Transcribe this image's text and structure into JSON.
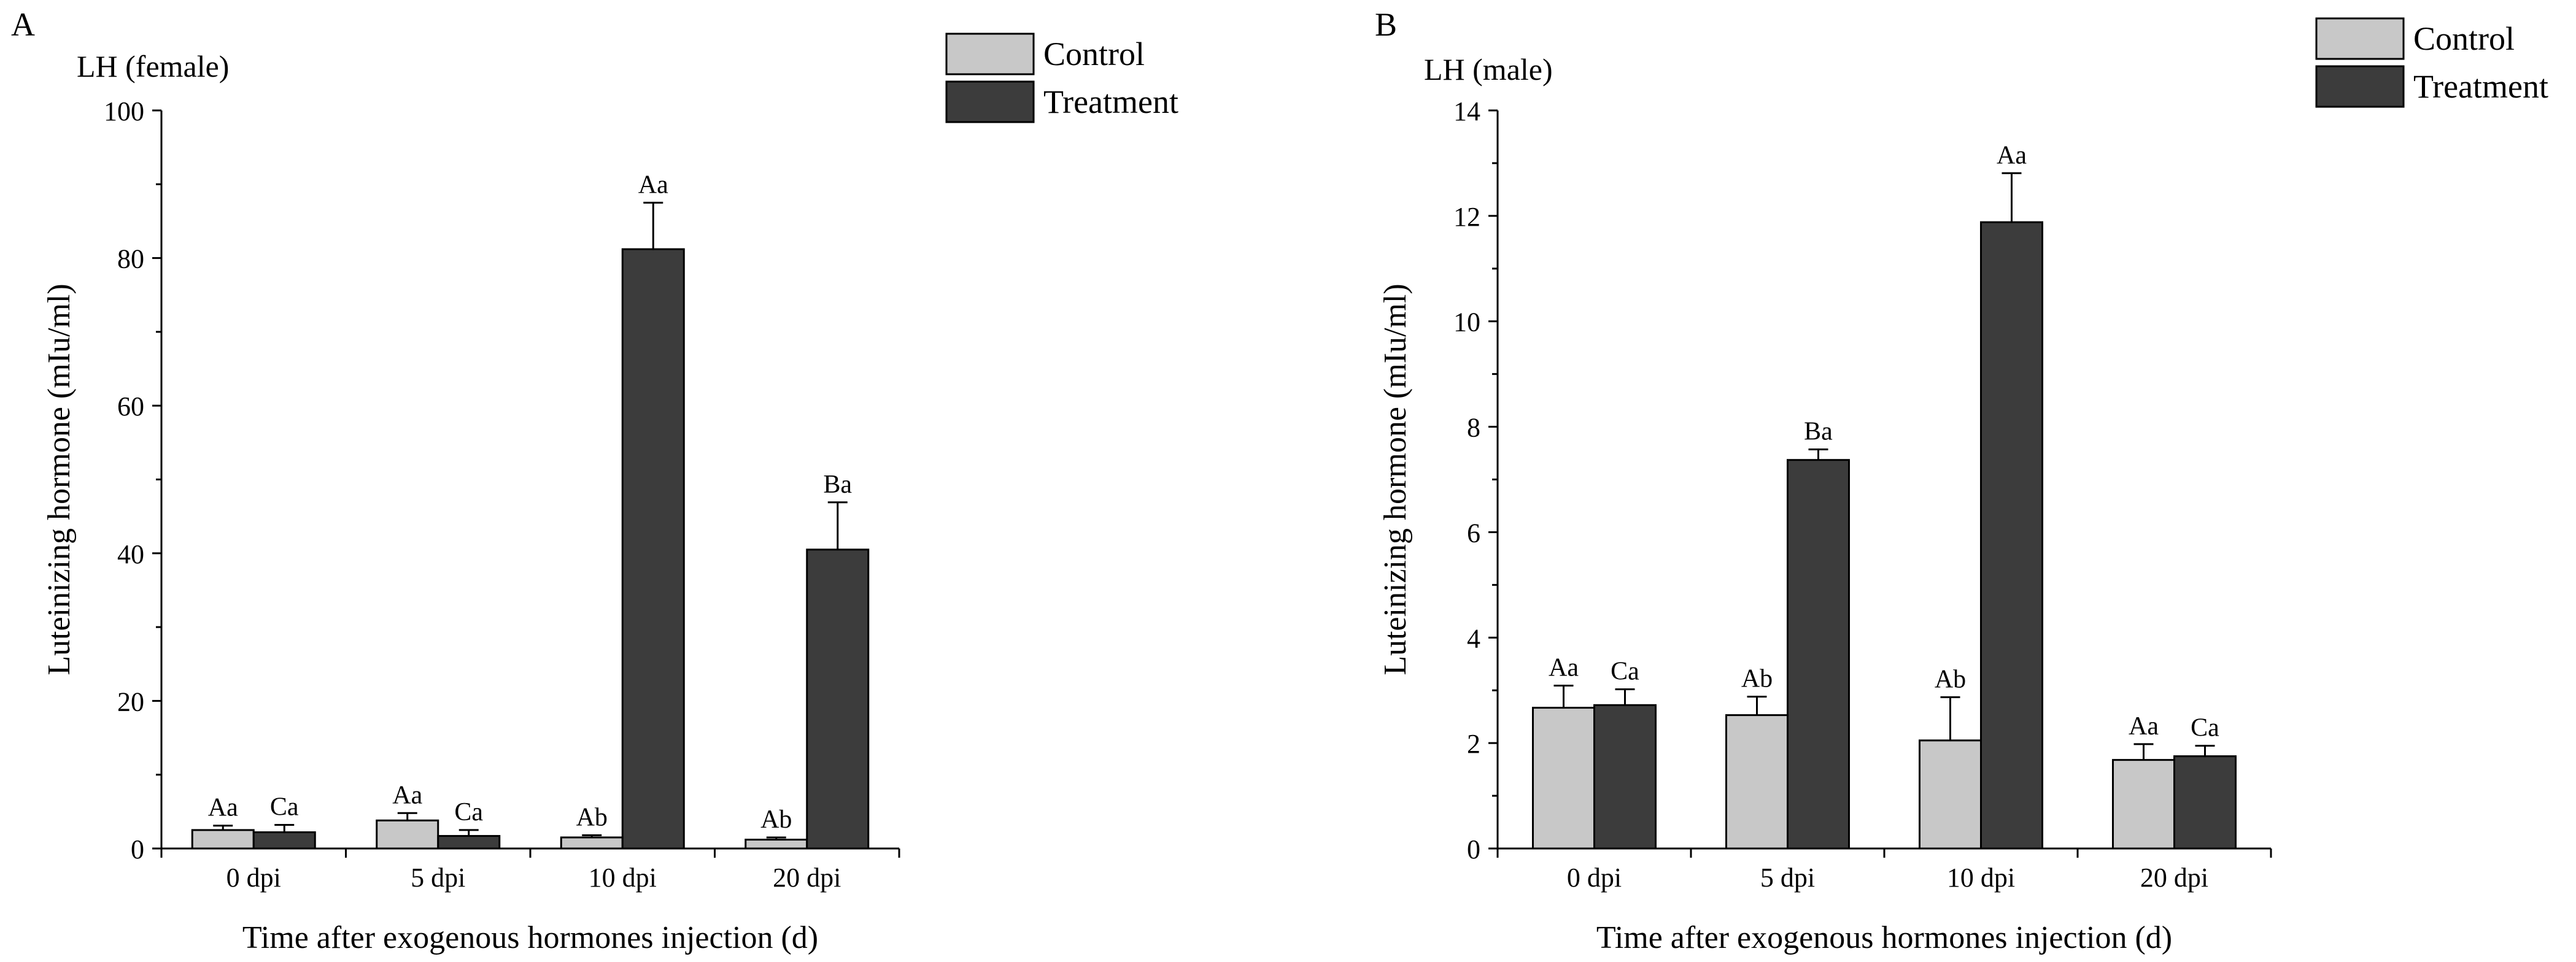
{
  "colors": {
    "control": "#c8c8c8",
    "treatment": "#3c3c3c",
    "axis": "#000000"
  },
  "chart_data": [
    {
      "panel_label": "A",
      "title": "LH (female)",
      "type": "bar",
      "xlabel": "Time after exogenous hormones injection (d)",
      "ylabel": "Luteinizing hormone (mIu/ml)",
      "ylim": [
        0,
        100
      ],
      "yticks": [
        0,
        20,
        40,
        60,
        80,
        100
      ],
      "categories": [
        "0 dpi",
        "5 dpi",
        "10 dpi",
        "20 dpi"
      ],
      "legend": {
        "position": "top-right",
        "entries": [
          "Control",
          "Treatment"
        ]
      },
      "series": [
        {
          "name": "Control",
          "values": [
            2.5,
            3.8,
            1.5,
            1.2
          ],
          "errors": [
            0.6,
            1.0,
            0.3,
            0.3
          ],
          "labels": [
            "Aa",
            "Aa",
            "Ab",
            "Ab"
          ]
        },
        {
          "name": "Treatment",
          "values": [
            2.2,
            1.7,
            81.2,
            40.5
          ],
          "errors": [
            1.0,
            0.8,
            6.3,
            6.4
          ],
          "labels": [
            "Ca",
            "Ca",
            "Aa",
            "Ba"
          ]
        }
      ]
    },
    {
      "panel_label": "B",
      "title": "LH (male)",
      "type": "bar",
      "xlabel": "Time after exogenous hormones injection (d)",
      "ylabel": "Luteinizing hormone (mIu/ml)",
      "ylim": [
        0,
        14
      ],
      "yticks": [
        0,
        2,
        4,
        6,
        8,
        10,
        12,
        14
      ],
      "categories": [
        "0 dpi",
        "5 dpi",
        "10 dpi",
        "20 dpi"
      ],
      "legend": {
        "position": "top-right",
        "entries": [
          "Control",
          "Treatment"
        ]
      },
      "series": [
        {
          "name": "Control",
          "values": [
            2.67,
            2.53,
            2.05,
            1.68
          ],
          "errors": [
            0.42,
            0.35,
            0.82,
            0.3
          ],
          "labels": [
            "Aa",
            "Ab",
            "Ab",
            "Aa"
          ]
        },
        {
          "name": "Treatment",
          "values": [
            2.72,
            7.37,
            11.88,
            1.75
          ],
          "errors": [
            0.3,
            0.2,
            0.93,
            0.2
          ],
          "labels": [
            "Ca",
            "Ba",
            "Aa",
            "Ca"
          ]
        }
      ]
    }
  ]
}
